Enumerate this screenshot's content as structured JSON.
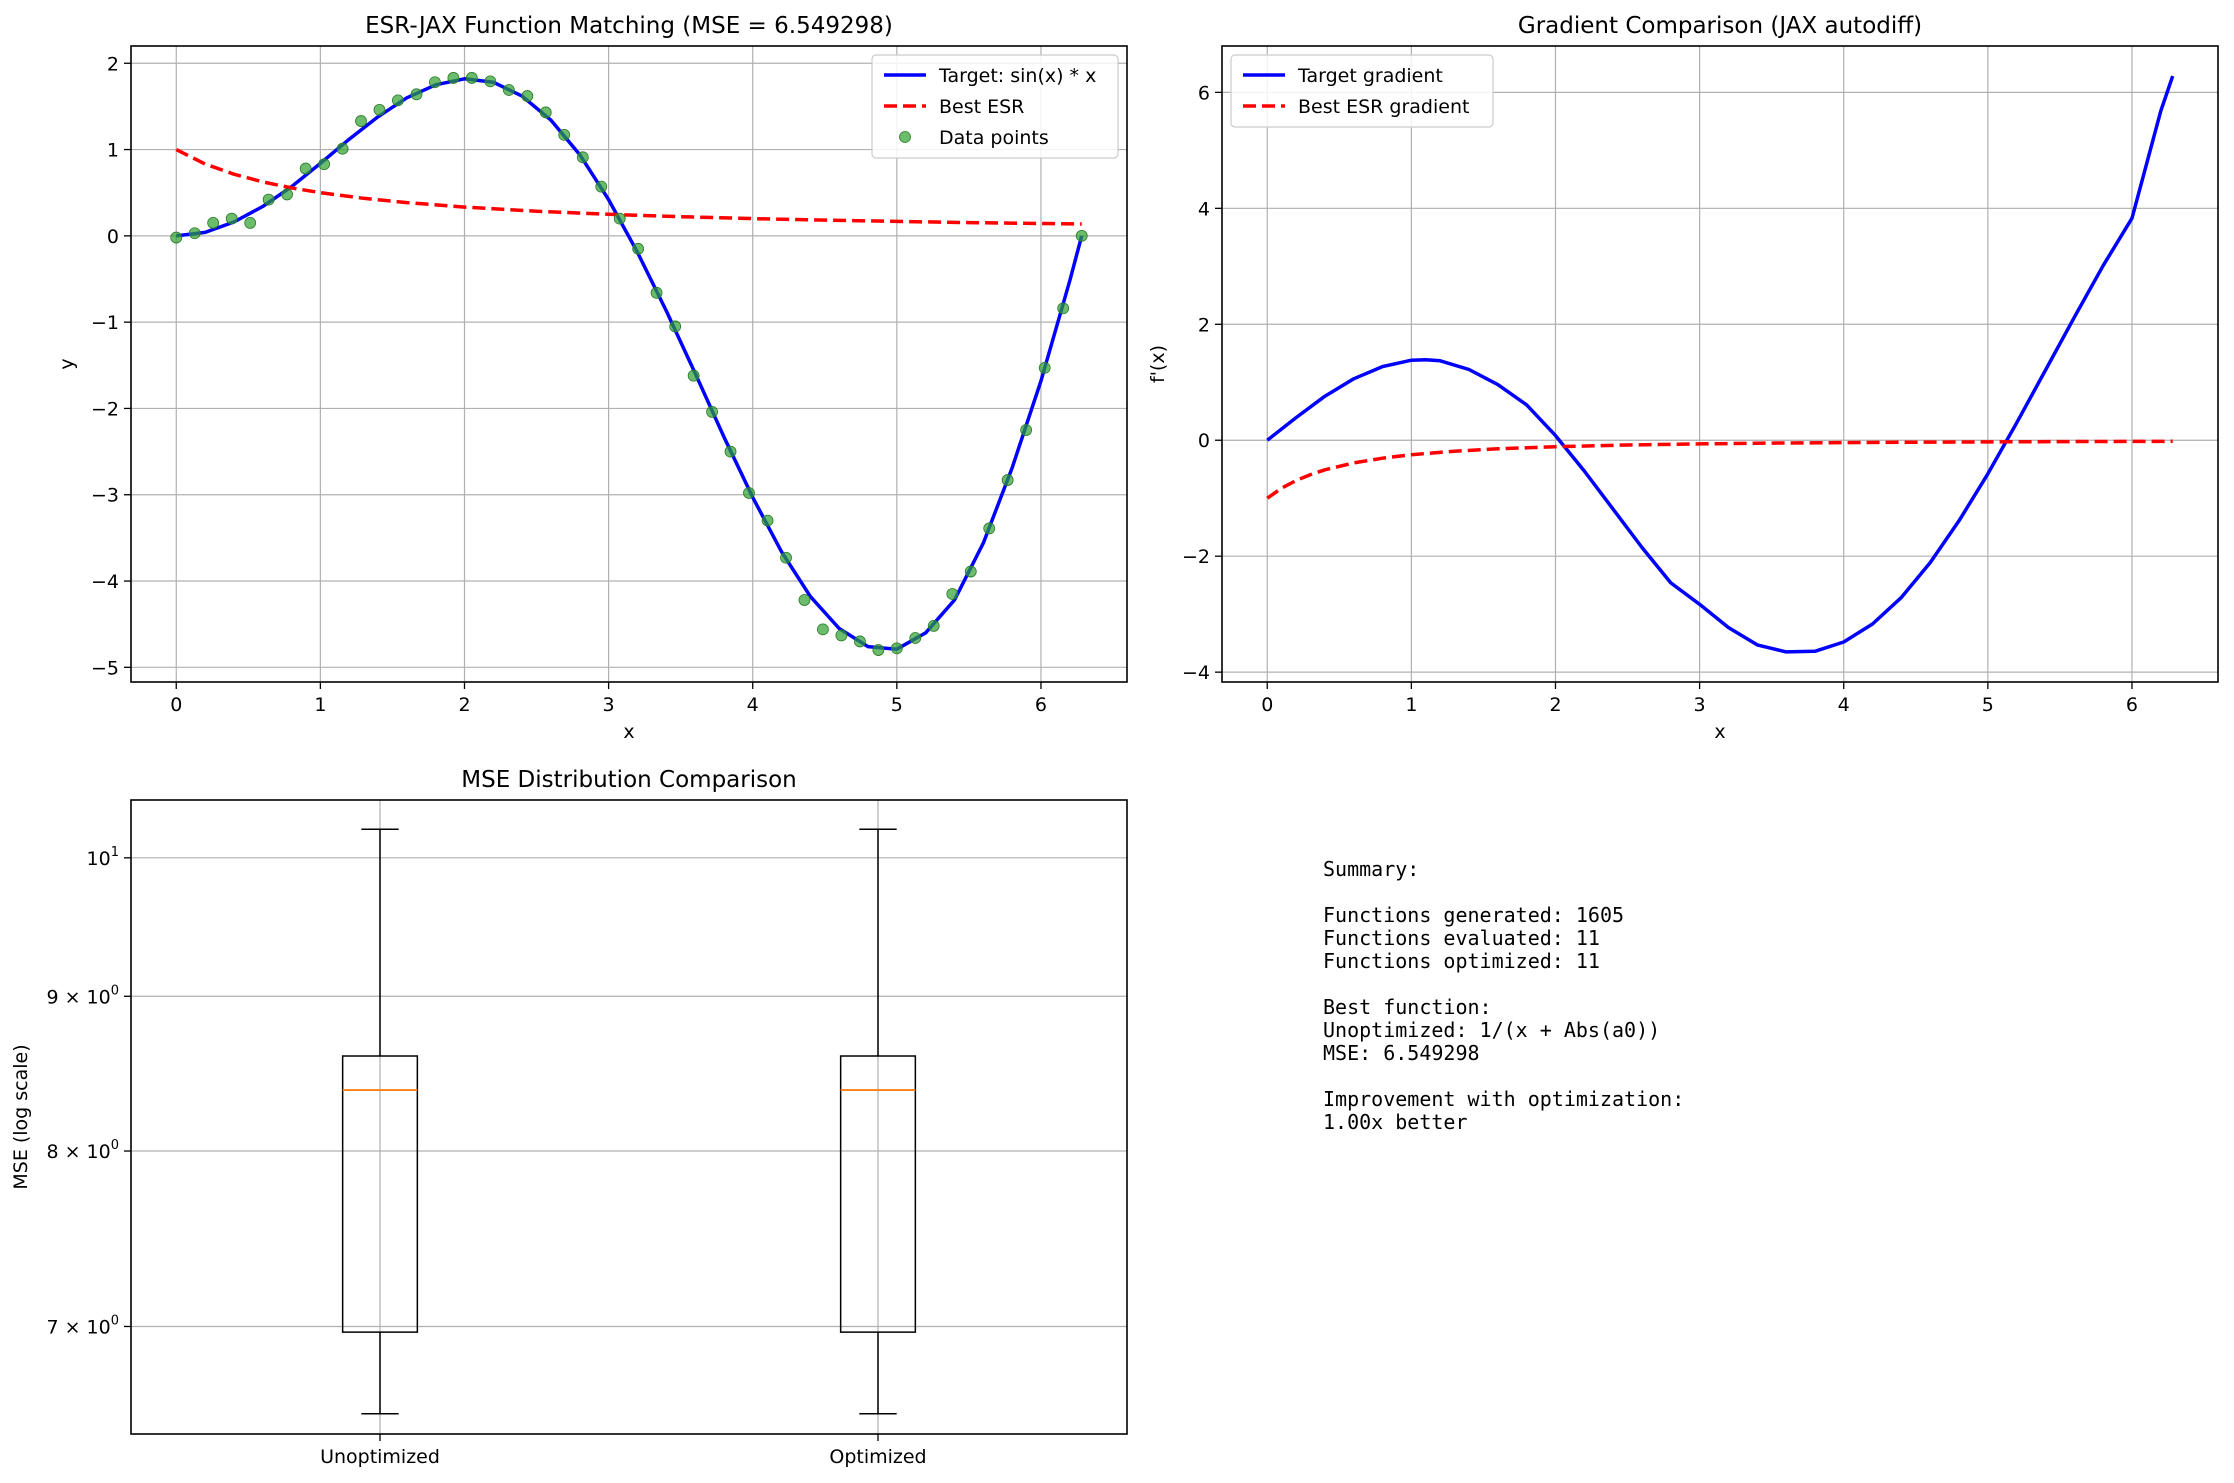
{
  "chart_data": [
    {
      "type": "line",
      "title": "ESR-JAX Function Matching (MSE = 6.549298)",
      "xlabel": "x",
      "ylabel": "y",
      "xlim": [
        -0.314,
        6.597
      ],
      "ylim": [
        -5.17,
        2.2
      ],
      "xticks": [
        0,
        1,
        2,
        3,
        4,
        5,
        6
      ],
      "yticks": [
        -5,
        -4,
        -3,
        -2,
        -1,
        0,
        1,
        2
      ],
      "grid": true,
      "legend": "top-right",
      "series": [
        {
          "name": "Target: sin(x) * x",
          "kind": "line",
          "color": "#0000ff",
          "style": "solid",
          "x": [
            0,
            0.2,
            0.4,
            0.6,
            0.8,
            1.0,
            1.2,
            1.4,
            1.6,
            1.8,
            2.0,
            2.2,
            2.4,
            2.6,
            2.8,
            3.0,
            3.2,
            3.4,
            3.6,
            3.8,
            4.0,
            4.2,
            4.4,
            4.6,
            4.8,
            5.0,
            5.2,
            5.4,
            5.6,
            5.8,
            6.0,
            6.2,
            6.283
          ],
          "y": [
            0,
            0.04,
            0.16,
            0.34,
            0.57,
            0.84,
            1.12,
            1.38,
            1.6,
            1.75,
            1.82,
            1.78,
            1.62,
            1.34,
            0.94,
            0.42,
            -0.19,
            -0.87,
            -1.59,
            -2.33,
            -3.03,
            -3.66,
            -4.18,
            -4.55,
            -4.76,
            -4.79,
            -4.6,
            -4.22,
            -3.56,
            -2.69,
            -1.68,
            -0.52,
            0
          ]
        },
        {
          "name": "Best ESR",
          "kind": "line",
          "color": "#ff0000",
          "style": "dashed",
          "x": [
            0,
            0.2,
            0.4,
            0.6,
            0.8,
            1.0,
            1.3,
            1.6,
            2.0,
            2.5,
            3.0,
            3.5,
            4.0,
            4.5,
            5.0,
            5.5,
            6.0,
            6.283
          ],
          "y": [
            1.0,
            0.833,
            0.714,
            0.625,
            0.556,
            0.5,
            0.435,
            0.385,
            0.333,
            0.286,
            0.25,
            0.222,
            0.2,
            0.182,
            0.167,
            0.154,
            0.143,
            0.137
          ]
        },
        {
          "name": "Data points",
          "kind": "scatter",
          "color": "#2ca02c",
          "x": [
            0,
            0.128,
            0.256,
            0.385,
            0.513,
            0.641,
            0.769,
            0.898,
            1.026,
            1.154,
            1.282,
            1.41,
            1.538,
            1.667,
            1.795,
            1.923,
            2.051,
            2.179,
            2.308,
            2.436,
            2.564,
            2.692,
            2.821,
            2.949,
            3.077,
            3.205,
            3.333,
            3.462,
            3.59,
            3.718,
            3.846,
            3.974,
            4.103,
            4.231,
            4.359,
            4.487,
            4.615,
            4.744,
            4.872,
            5.0,
            5.128,
            5.256,
            5.385,
            5.513,
            5.641,
            5.769,
            5.897,
            6.026,
            6.154,
            6.283
          ],
          "y": [
            -0.02,
            0.03,
            0.15,
            0.2,
            0.15,
            0.42,
            0.48,
            0.78,
            0.83,
            1.01,
            1.33,
            1.46,
            1.57,
            1.64,
            1.78,
            1.83,
            1.83,
            1.79,
            1.69,
            1.62,
            1.43,
            1.17,
            0.91,
            0.57,
            0.2,
            -0.15,
            -0.66,
            -1.05,
            -1.62,
            -2.04,
            -2.5,
            -2.98,
            -3.3,
            -3.73,
            -4.22,
            -4.56,
            -4.63,
            -4.7,
            -4.8,
            -4.78,
            -4.66,
            -4.52,
            -4.15,
            -3.89,
            -3.39,
            -2.83,
            -2.25,
            -1.53,
            -0.84,
            0.0
          ]
        }
      ]
    },
    {
      "type": "line",
      "title": "Gradient Comparison (JAX autodiff)",
      "xlabel": "x",
      "ylabel": "f'(x)",
      "xlim": [
        -0.314,
        6.597
      ],
      "ylim": [
        -4.17,
        6.8
      ],
      "xticks": [
        0,
        1,
        2,
        3,
        4,
        5,
        6
      ],
      "yticks": [
        -4,
        -2,
        0,
        2,
        4,
        6
      ],
      "grid": true,
      "legend": "top-left",
      "series": [
        {
          "name": "Target gradient",
          "kind": "line",
          "color": "#0000ff",
          "style": "solid",
          "x": [
            0,
            0.2,
            0.4,
            0.6,
            0.8,
            1.0,
            1.1,
            1.2,
            1.4,
            1.6,
            1.8,
            2.0,
            2.2,
            2.4,
            2.6,
            2.8,
            3.0,
            3.2,
            3.4,
            3.6,
            3.8,
            4.0,
            4.2,
            4.4,
            4.6,
            4.8,
            5.0,
            5.2,
            5.4,
            5.6,
            5.8,
            6.0,
            6.2,
            6.283
          ],
          "y": [
            0,
            0.39,
            0.76,
            1.06,
            1.27,
            1.38,
            1.39,
            1.37,
            1.22,
            0.96,
            0.61,
            0.08,
            -0.53,
            -1.19,
            -1.85,
            -2.46,
            -2.83,
            -3.23,
            -3.53,
            -3.65,
            -3.64,
            -3.48,
            -3.17,
            -2.71,
            -2.11,
            -1.39,
            -0.58,
            0.3,
            1.21,
            2.12,
            3.01,
            3.83,
            5.68,
            6.28
          ]
        },
        {
          "name": "Best ESR gradient",
          "kind": "line",
          "color": "#ff0000",
          "style": "dashed",
          "x": [
            0,
            0.1,
            0.2,
            0.3,
            0.4,
            0.6,
            0.8,
            1.0,
            1.3,
            1.6,
            2.0,
            2.5,
            3.0,
            3.5,
            4.0,
            4.5,
            5.0,
            5.5,
            6.0,
            6.283
          ],
          "y": [
            -1.0,
            -0.826,
            -0.694,
            -0.592,
            -0.51,
            -0.391,
            -0.309,
            -0.25,
            -0.189,
            -0.148,
            -0.111,
            -0.082,
            -0.0625,
            -0.049,
            -0.04,
            -0.033,
            -0.028,
            -0.024,
            -0.02,
            -0.019
          ]
        }
      ]
    },
    {
      "type": "box",
      "title": "MSE Distribution Comparison",
      "xlabel": "",
      "ylabel": "MSE (log scale)",
      "yscale": "log",
      "ylim": [
        6.45,
        10.45
      ],
      "yticks": [
        7,
        8,
        9,
        10
      ],
      "ytick_labels": [
        {
          "base": "7 × 10",
          "exp": "0"
        },
        {
          "base": "8 × 10",
          "exp": "0"
        },
        {
          "base": "9 × 10",
          "exp": "0"
        },
        {
          "base": "10",
          "exp": "1"
        }
      ],
      "grid": "y",
      "categories": [
        "Unoptimized",
        "Optimized"
      ],
      "boxes": [
        {
          "name": "Unoptimized",
          "whisker_low": 6.55,
          "q1": 6.97,
          "median": 8.38,
          "q3": 8.6,
          "whisker_high": 10.22
        },
        {
          "name": "Optimized",
          "whisker_low": 6.55,
          "q1": 6.97,
          "median": 8.38,
          "q3": 8.6,
          "whisker_high": 10.22
        }
      ],
      "median_color": "#ff7f0e"
    }
  ],
  "summary": {
    "lines": [
      "Summary:",
      "",
      "Functions generated: 1605",
      "Functions evaluated: 11",
      "Functions optimized: 11",
      "",
      "Best function:",
      "Unoptimized: 1/(x + Abs(a0))",
      "MSE: 6.549298",
      "",
      "Improvement with optimization:",
      "1.00x better"
    ]
  }
}
